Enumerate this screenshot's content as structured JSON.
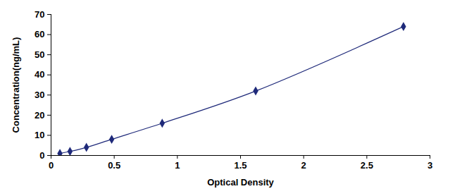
{
  "chart_data": {
    "type": "line",
    "x_label": "Optical Density",
    "y_label": "Concentration(ng/mL)",
    "x": [
      0.07,
      0.15,
      0.28,
      0.48,
      0.88,
      1.62,
      2.79
    ],
    "values": [
      1,
      2,
      4,
      8,
      16,
      32,
      64
    ],
    "color": "#1f2a7a",
    "marker": "diamond",
    "xlim": [
      0,
      3
    ],
    "xticks": [
      0,
      0.5,
      1,
      1.5,
      2,
      2.5,
      3
    ],
    "ylim": [
      0,
      70
    ],
    "yticks": [
      0,
      10,
      20,
      30,
      40,
      50,
      60,
      70
    ],
    "grid": false
  }
}
